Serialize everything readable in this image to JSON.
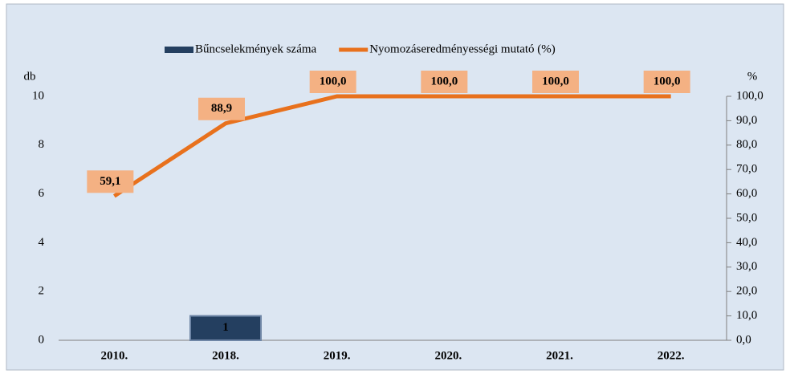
{
  "chart_data": {
    "type": "combo",
    "categories": [
      "2010.",
      "2018.",
      "2019.",
      "2020.",
      "2021.",
      "2022."
    ],
    "series": [
      {
        "name": "Bűncselekmények száma",
        "type": "bar",
        "color": "#243f60",
        "values": [
          null,
          1,
          null,
          null,
          null,
          null
        ]
      },
      {
        "name": "Nyomozáseredményességi mutató (%)",
        "type": "line",
        "axis": "y2",
        "color": "#e8711d",
        "values": [
          59.1,
          88.9,
          100,
          100,
          100,
          100
        ],
        "value_labels": [
          "59,1",
          "88,9",
          "100,0",
          "100,0",
          "100,0",
          "100,0"
        ]
      }
    ],
    "ylabel": "db",
    "y2label": "%",
    "ylim": [
      0,
      10
    ],
    "yticks": [
      0,
      2,
      4,
      6,
      8,
      10
    ],
    "y2lim": [
      0,
      100
    ],
    "y2ticks": [
      {
        "value": 0,
        "label": "0,0"
      },
      {
        "value": 10,
        "label": "10,0"
      },
      {
        "value": 20,
        "label": "20,0"
      },
      {
        "value": 30,
        "label": "30,0"
      },
      {
        "value": 40,
        "label": "40,0"
      },
      {
        "value": 50,
        "label": "50,0"
      },
      {
        "value": 60,
        "label": "60,0"
      },
      {
        "value": 70,
        "label": "70,0"
      },
      {
        "value": 80,
        "label": "80,0"
      },
      {
        "value": 90,
        "label": "90,0"
      },
      {
        "value": 100,
        "label": "100,0"
      }
    ],
    "legend": "top"
  }
}
